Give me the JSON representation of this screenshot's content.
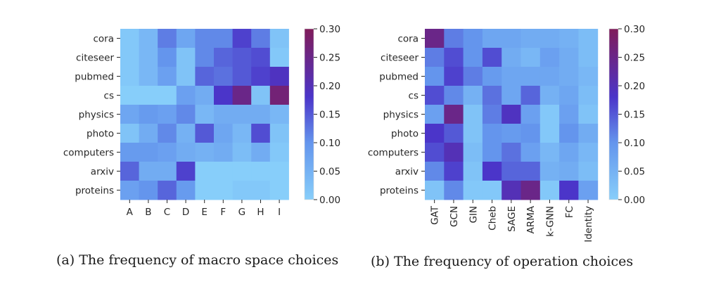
{
  "colors": {
    "low": "#87CEFA",
    "mid1": "#6495ED",
    "mid2": "#4B35C9",
    "high": "#801C5A"
  },
  "chart_data": [
    {
      "type": "heatmap",
      "caption": "(a) The frequency of macro space choices",
      "rows": [
        "cora",
        "citeseer",
        "pubmed",
        "cs",
        "physics",
        "photo",
        "computers",
        "arxiv",
        "proteins"
      ],
      "columns": [
        "A",
        "B",
        "C",
        "D",
        "E",
        "F",
        "G",
        "H",
        "I"
      ],
      "values": [
        [
          0.01,
          0.04,
          0.12,
          0.07,
          0.11,
          0.11,
          0.17,
          0.12,
          0.02
        ],
        [
          0.01,
          0.04,
          0.1,
          0.02,
          0.11,
          0.14,
          0.15,
          0.16,
          0.01
        ],
        [
          0.01,
          0.04,
          0.08,
          0.02,
          0.14,
          0.13,
          0.15,
          0.17,
          0.19
        ],
        [
          0.0,
          0.0,
          0.0,
          0.08,
          0.06,
          0.18,
          0.25,
          0.02,
          0.27
        ],
        [
          0.07,
          0.09,
          0.08,
          0.11,
          0.04,
          0.06,
          0.06,
          0.06,
          0.04
        ],
        [
          0.02,
          0.06,
          0.11,
          0.05,
          0.15,
          0.07,
          0.04,
          0.16,
          0.02
        ],
        [
          0.09,
          0.09,
          0.08,
          0.06,
          0.05,
          0.06,
          0.03,
          0.06,
          0.01
        ],
        [
          0.14,
          0.06,
          0.06,
          0.17,
          0.0,
          0.0,
          0.0,
          0.0,
          0.0
        ],
        [
          0.08,
          0.1,
          0.14,
          0.09,
          0.0,
          0.0,
          0.01,
          0.01,
          0.0
        ]
      ],
      "colorbar": {
        "range": [
          0.0,
          0.3
        ],
        "ticks": [
          "0.00",
          "0.05",
          "0.10",
          "0.15",
          "0.20",
          "0.25",
          "0.30"
        ]
      }
    },
    {
      "type": "heatmap",
      "caption": "(b) The frequency of operation choices",
      "rows": [
        "cora",
        "citeseer",
        "pubmed",
        "cs",
        "physics",
        "photo",
        "computers",
        "arxiv",
        "proteins"
      ],
      "columns": [
        "GAT",
        "GCN",
        "GIN",
        "Cheb",
        "SAGE",
        "ARMA",
        "k-GNN",
        "FC",
        "Identity"
      ],
      "values": [
        [
          0.25,
          0.12,
          0.1,
          0.07,
          0.07,
          0.06,
          0.06,
          0.05,
          0.03
        ],
        [
          0.12,
          0.16,
          0.1,
          0.16,
          0.06,
          0.04,
          0.08,
          0.06,
          0.03
        ],
        [
          0.1,
          0.17,
          0.12,
          0.09,
          0.07,
          0.07,
          0.07,
          0.06,
          0.04
        ],
        [
          0.16,
          0.11,
          0.05,
          0.13,
          0.07,
          0.14,
          0.05,
          0.07,
          0.03
        ],
        [
          0.08,
          0.25,
          0.02,
          0.12,
          0.19,
          0.08,
          0.01,
          0.08,
          0.02
        ],
        [
          0.18,
          0.15,
          0.02,
          0.1,
          0.09,
          0.1,
          0.01,
          0.1,
          0.06
        ],
        [
          0.16,
          0.2,
          0.03,
          0.1,
          0.13,
          0.08,
          0.04,
          0.07,
          0.04
        ],
        [
          0.11,
          0.17,
          0.02,
          0.18,
          0.14,
          0.14,
          0.05,
          0.06,
          0.03
        ],
        [
          0.02,
          0.11,
          0.01,
          0.01,
          0.2,
          0.25,
          0.01,
          0.18,
          0.08
        ]
      ],
      "colorbar": {
        "range": [
          0.0,
          0.3
        ],
        "ticks": [
          "0.00",
          "0.05",
          "0.10",
          "0.15",
          "0.20",
          "0.25",
          "0.30"
        ]
      }
    }
  ]
}
